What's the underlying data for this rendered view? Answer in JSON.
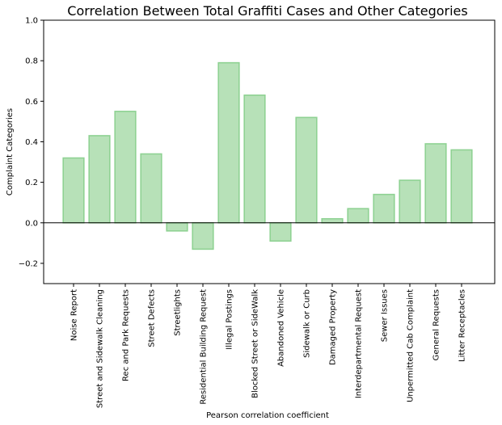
{
  "chart_data": {
    "type": "bar",
    "title": "Correlation Between Total Graffiti Cases and Other Categories",
    "xlabel": "Pearson correlation coefficient",
    "ylabel": "Complaint Categories",
    "ylim": [
      -0.3,
      1.0
    ],
    "yticks": [
      -0.2,
      0.0,
      0.2,
      0.4,
      0.6,
      0.8,
      1.0
    ],
    "ytick_labels": [
      "−0.2",
      "0.0",
      "0.2",
      "0.4",
      "0.6",
      "0.8",
      "1.0"
    ],
    "grid": false,
    "bar_fill": "#b7e1b8",
    "bar_edge": "#8fd293",
    "categories": [
      "Noise Report",
      "Street and Sidewalk Cleaning",
      "Rec and Park Requests",
      "Street Defects",
      "Streetlights",
      "Residential Building Request",
      "Illegal Postings",
      "Blocked Street or SideWalk",
      "Abandoned Vehicle",
      "Sidewalk or Curb",
      "Damaged Property",
      "Interdepartmental Request",
      "Sewer Issues",
      "Unpermitted Cab Complaint",
      "General Requests",
      "Litter Receptacles"
    ],
    "values": [
      0.32,
      0.43,
      0.55,
      0.34,
      -0.04,
      -0.13,
      0.79,
      0.63,
      -0.09,
      0.52,
      0.02,
      0.07,
      0.14,
      0.21,
      0.39,
      0.36
    ]
  }
}
